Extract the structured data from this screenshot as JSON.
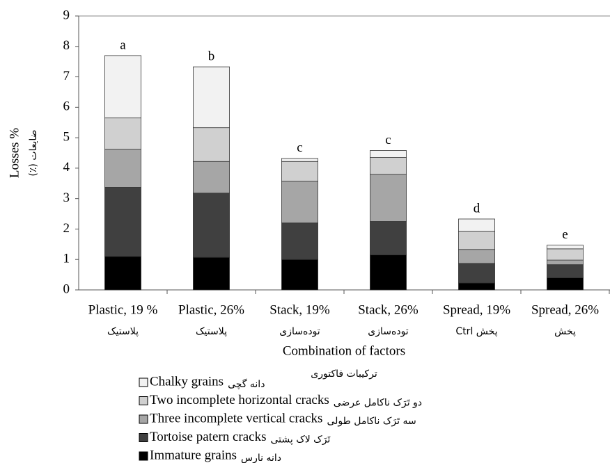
{
  "chart_data": {
    "type": "stacked_bar",
    "ylabel": [
      "Losses %",
      "ضایعات (٪)"
    ],
    "xlabel": [
      "Combination of factors",
      "ترکیبات فاکتوری"
    ],
    "categories": [
      [
        "Plastic, 19 %",
        "پلاستیک"
      ],
      [
        "Plastic, 26%",
        "پلاستیک"
      ],
      [
        "Stack, 19%",
        "توده‌سازی"
      ],
      [
        "Stack, 26%",
        "توده‌سازی"
      ],
      [
        "Spread, 19%",
        "پخش  Ctrl"
      ],
      [
        "Spread, 26%",
        "پخش"
      ]
    ],
    "annotations": [
      "a",
      "b",
      "c",
      "c",
      "d",
      "e"
    ],
    "series": [
      {
        "name": "Immature grains",
        "name_local": "دانه نارس",
        "color": "#000000",
        "values": [
          1.1,
          1.07,
          1.0,
          1.15,
          0.23,
          0.4
        ]
      },
      {
        "name": "Tortoise patern cracks",
        "name_local": "تَرَک لاک پشتی",
        "color": "#404040",
        "values": [
          2.27,
          2.11,
          1.2,
          1.1,
          0.64,
          0.43
        ]
      },
      {
        "name": "Three incomplete vertical cracks",
        "name_local": "سه تَرَک ناکامل طولی",
        "color": "#a6a6a6",
        "values": [
          1.25,
          1.04,
          1.37,
          1.55,
          0.46,
          0.15
        ]
      },
      {
        "name": "Two incomplete horizontal cracks",
        "name_local": "دو تَرَک ناکامل عرضی",
        "color": "#d0d0d0",
        "values": [
          1.03,
          1.11,
          0.65,
          0.55,
          0.6,
          0.37
        ]
      },
      {
        "name": "Chalky grains",
        "name_local": "دانه گچی",
        "color": "#f2f2f2",
        "values": [
          2.05,
          2.0,
          0.1,
          0.23,
          0.4,
          0.12
        ]
      }
    ],
    "ylim": [
      0,
      9
    ],
    "yticks": [
      0,
      1,
      2,
      3,
      4,
      5,
      6,
      7,
      8,
      9
    ],
    "grid": false
  }
}
